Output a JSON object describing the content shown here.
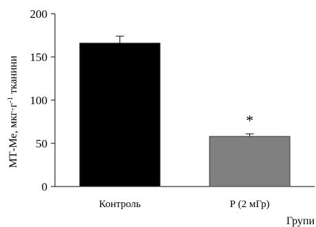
{
  "chart_data": {
    "type": "bar",
    "categories": [
      "Контроль",
      "Р (2 мГр)"
    ],
    "values": [
      166,
      58
    ],
    "errors": [
      8,
      3
    ],
    "bar_colors": [
      "#000000",
      "#808080"
    ],
    "annotations": [
      "",
      "*"
    ],
    "ylabel_main": "МТ-Ме, мкг·г",
    "ylabel_sup": "-1",
    "ylabel_tail": " тканини",
    "xlabel": "Групи",
    "ylim": [
      0,
      200
    ],
    "yticks": [
      0,
      50,
      100,
      150,
      200
    ],
    "grid": false
  }
}
